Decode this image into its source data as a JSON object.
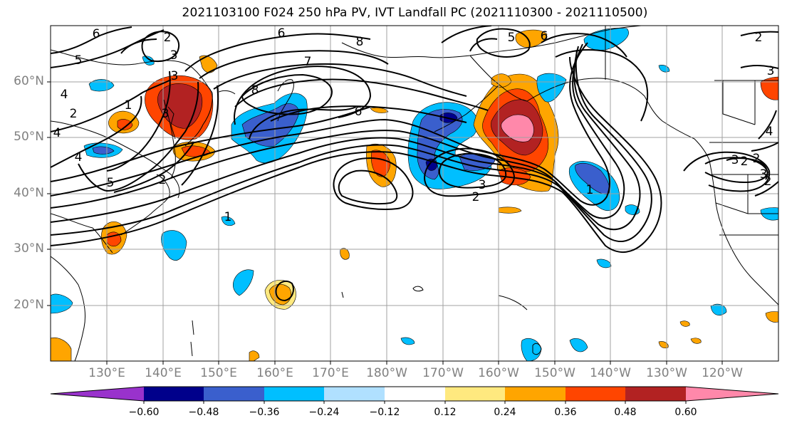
{
  "title": "2021103100 F024 250 hPa PV, IVT Landfall PC (2021110300 - 2021110500)",
  "lat_labels": [
    "60°N",
    "50°N",
    "40°N",
    "30°N",
    "20°N"
  ],
  "lon_labels": [
    "130°E",
    "140°E",
    "150°E",
    "160°E",
    "170°E",
    "180°W",
    "170°W",
    "160°W",
    "150°W",
    "140°W",
    "130°W",
    "120°W"
  ],
  "contour_labels": [
    "6",
    "5",
    "2",
    "3",
    "4",
    "2",
    "1",
    "3",
    "4",
    "5",
    "6",
    "7",
    "8",
    "8",
    "6",
    "5",
    "6",
    "3",
    "2",
    "1",
    "2",
    "3",
    "4",
    "1",
    "2",
    "3",
    "4",
    "2",
    "3",
    "3",
    "2",
    "2"
  ],
  "colorbar": {
    "ticks": [
      "−0.60",
      "−0.48",
      "−0.36",
      "−0.24",
      "−0.12",
      "0.12",
      "0.24",
      "0.36",
      "0.48",
      "0.60"
    ],
    "colors": [
      "#9932CC",
      "#00008B",
      "#3A5FCD",
      "#00BFFF",
      "#B0E0FF",
      "#FFFFFF",
      "#FFE97F",
      "#FFA500",
      "#FF4500",
      "#B22222",
      "#FF88AA"
    ]
  },
  "palette": {
    "land_outline": "#000000",
    "gridline": "#a0a0a0",
    "contour": "#000000",
    "axis_label": "#808080"
  }
}
